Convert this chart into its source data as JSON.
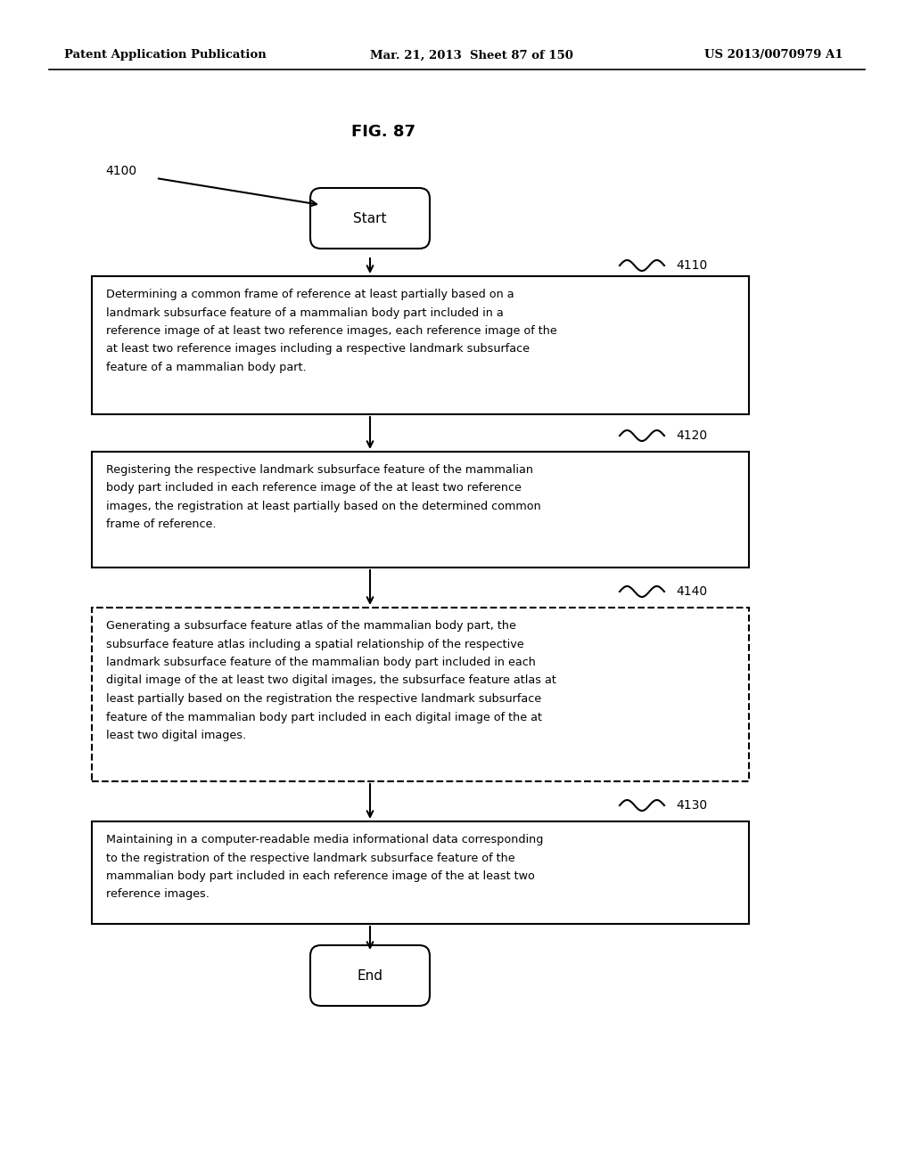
{
  "header_left": "Patent Application Publication",
  "header_mid": "Mar. 21, 2013  Sheet 87 of 150",
  "header_right": "US 2013/0070979 A1",
  "fig_title": "FIG. 87",
  "label_4100": "4100",
  "label_4110": "4110",
  "label_4120": "4120",
  "label_4140": "4140",
  "label_4130": "4130",
  "start_text": "Start",
  "end_text": "End",
  "box1_text": "Determining a common frame of reference at least partially based on a\nlandmark subsurface feature of a mammalian body part included in a\nreference image of at least two reference images, each reference image of the\nat least two reference images including a respective landmark subsurface\nfeature of a mammalian body part.",
  "box2_text": "Registering the respective landmark subsurface feature of the mammalian\nbody part included in each reference image of the at least two reference\nimages, the registration at least partially based on the determined common\nframe of reference.",
  "box3_text": "Generating a subsurface feature atlas of the mammalian body part, the\nsubsurface feature atlas including a spatial relationship of the respective\nlandmark subsurface feature of the mammalian body part included in each\ndigital image of the at least two digital images, the subsurface feature atlas at\nleast partially based on the registration the respective landmark subsurface\nfeature of the mammalian body part included in each digital image of the at\nleast two digital images.",
  "box4_text": "Maintaining in a computer-readable media informational data corresponding\nto the registration of the respective landmark subsurface feature of the\nmammalian body part included in each reference image of the at least two\nreference images.",
  "bg_color": "#ffffff",
  "text_color": "#000000",
  "box_edge_color": "#000000",
  "dashed_color": "#000000"
}
